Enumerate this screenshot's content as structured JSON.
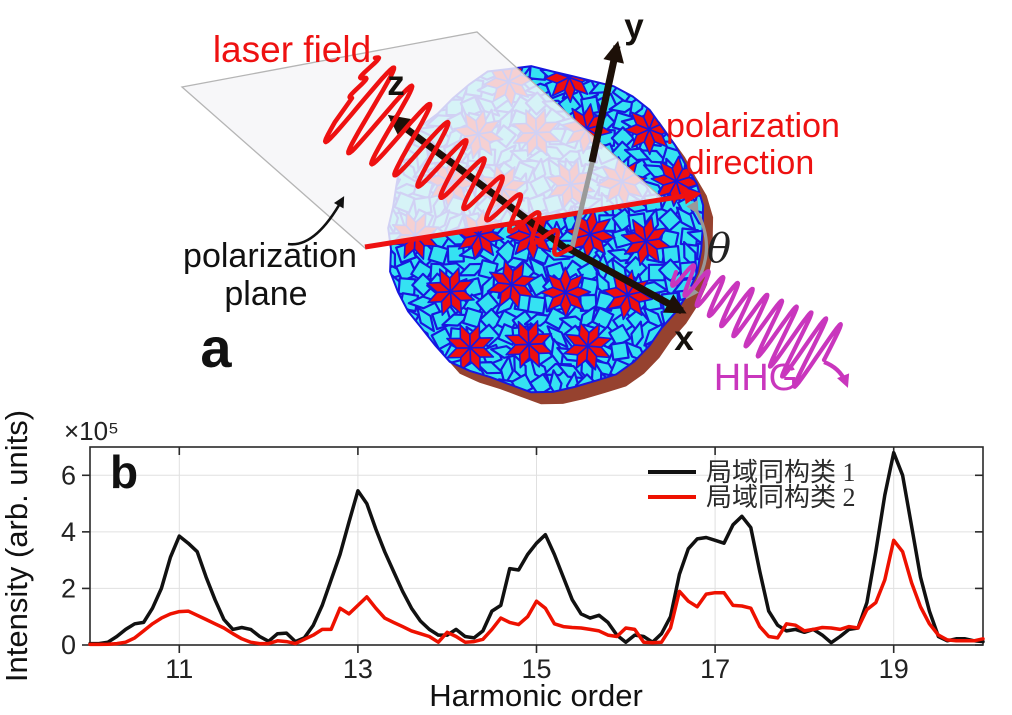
{
  "figure": {
    "background": "#ffffff"
  },
  "panel_a": {
    "label": "a",
    "axis_labels": {
      "x": "x",
      "y": "y",
      "z": "z"
    },
    "annotations": {
      "laser_field": "laser field",
      "polarization_direction_line1": "polarization",
      "polarization_direction_line2": "direction",
      "polarization_plane_line1": "polarization",
      "polarization_plane_line2": "plane",
      "theta": "θ",
      "hhg": "HHG"
    },
    "colors": {
      "laser_red": "#ee1111",
      "hhg_magenta": "#c936bd",
      "tile_cyan": "#35e2f2",
      "tile_edge_blue": "#1717e0",
      "star_red": "#ee0f0f",
      "shadow_brown": "#96422f",
      "plane_gray": "#f6f6f8",
      "axis_black": "#1d1008",
      "theta_arc_gray": "#999999"
    }
  },
  "panel_b": {
    "label": "b"
  },
  "chart_data": {
    "type": "line",
    "title": "",
    "xlabel": "Harmonic order",
    "ylabel": "Intensity (arb. units)",
    "y_scale_label": "×10⁵",
    "xlim": [
      10,
      20
    ],
    "ylim": [
      0,
      7
    ],
    "xticks": [
      11,
      13,
      15,
      17,
      19
    ],
    "yticks": [
      0,
      2,
      4,
      6
    ],
    "grid": true,
    "legend_position": "top-right",
    "x_start": 10.0,
    "x_step": 0.1,
    "series": [
      {
        "name": "局域同构类 1",
        "color": "#111111",
        "values": [
          0.05,
          0.05,
          0.1,
          0.3,
          0.55,
          0.75,
          0.8,
          1.3,
          2.0,
          3.1,
          3.85,
          3.6,
          3.3,
          2.4,
          1.6,
          0.9,
          0.55,
          0.62,
          0.55,
          0.3,
          0.13,
          0.4,
          0.42,
          0.12,
          0.25,
          0.7,
          1.4,
          2.3,
          3.2,
          4.35,
          5.45,
          5.0,
          4.1,
          3.3,
          2.6,
          1.9,
          1.3,
          0.85,
          0.55,
          0.35,
          0.35,
          0.55,
          0.3,
          0.25,
          0.5,
          1.2,
          1.4,
          2.7,
          2.65,
          3.2,
          3.6,
          3.9,
          3.2,
          2.4,
          1.6,
          1.1,
          0.95,
          1.05,
          0.8,
          0.35,
          0.1,
          0.35,
          0.3,
          0.1,
          0.4,
          1.0,
          2.5,
          3.4,
          3.75,
          3.8,
          3.7,
          3.6,
          4.25,
          4.55,
          4.15,
          2.6,
          1.2,
          0.7,
          0.5,
          0.55,
          0.45,
          0.55,
          0.35,
          0.08,
          0.3,
          0.55,
          0.6,
          1.5,
          3.3,
          5.3,
          6.8,
          6.0,
          4.2,
          2.4,
          1.2,
          0.3,
          0.15,
          0.22,
          0.22,
          0.15,
          0.12
        ]
      },
      {
        "name": "局域同构类 2",
        "color": "#ee1100",
        "values": [
          0.02,
          0.02,
          0.03,
          0.05,
          0.1,
          0.25,
          0.5,
          0.75,
          0.95,
          1.1,
          1.18,
          1.2,
          1.05,
          0.9,
          0.75,
          0.6,
          0.4,
          0.22,
          0.1,
          0.05,
          0.05,
          0.15,
          0.12,
          0.05,
          0.2,
          0.35,
          0.55,
          0.55,
          1.3,
          1.1,
          1.4,
          1.7,
          1.3,
          0.95,
          0.8,
          0.65,
          0.5,
          0.4,
          0.3,
          0.1,
          0.45,
          0.3,
          0.1,
          0.12,
          0.2,
          0.55,
          0.95,
          0.8,
          0.72,
          1.0,
          1.55,
          1.3,
          0.75,
          0.65,
          0.62,
          0.6,
          0.55,
          0.5,
          0.35,
          0.3,
          0.6,
          0.55,
          0.1,
          0.08,
          0.1,
          0.6,
          1.9,
          1.55,
          1.35,
          1.8,
          1.85,
          1.85,
          1.4,
          1.38,
          1.3,
          0.65,
          0.3,
          0.25,
          0.75,
          0.7,
          0.5,
          0.55,
          0.62,
          0.6,
          0.55,
          0.65,
          0.6,
          1.25,
          1.5,
          2.3,
          3.7,
          3.3,
          2.2,
          1.35,
          0.75,
          0.35,
          0.18,
          0.15,
          0.15,
          0.15,
          0.22
        ]
      }
    ]
  }
}
